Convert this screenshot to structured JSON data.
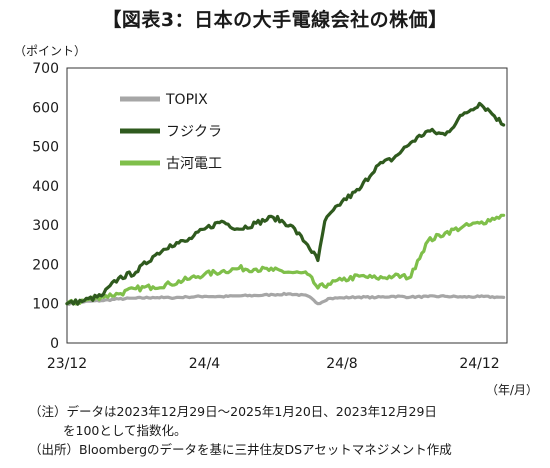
{
  "chart_data": {
    "type": "line",
    "title": "【図表3：日本の大手電線会社の株価】",
    "ylabel": "（ポイント）",
    "xlabel": "（年/月）",
    "ylim": [
      0,
      700
    ],
    "yticks": [
      0,
      100,
      200,
      300,
      400,
      500,
      600,
      700
    ],
    "x_range": [
      "2023-12",
      "2025-01"
    ],
    "xticks": [
      {
        "label": "23/12",
        "month": 0
      },
      {
        "label": "24/4",
        "month": 4
      },
      {
        "label": "24/8",
        "month": 8
      },
      {
        "label": "24/12",
        "month": 12
      }
    ],
    "grid": false,
    "legend_position": "top-left",
    "series": [
      {
        "name": "TOPIX",
        "color": "#a6a6a6",
        "x": [
          0,
          0.5,
          1,
          1.5,
          2,
          2.5,
          3,
          3.5,
          4,
          4.5,
          5,
          5.5,
          6,
          6.5,
          7,
          7.3,
          7.6,
          8,
          8.5,
          9,
          9.5,
          10,
          10.5,
          11,
          11.5,
          12,
          12.5,
          12.7
        ],
        "values": [
          100,
          105,
          108,
          112,
          114,
          116,
          115,
          117,
          119,
          118,
          120,
          121,
          123,
          125,
          120,
          100,
          113,
          115,
          117,
          116,
          119,
          117,
          118,
          119,
          117,
          118,
          117,
          116
        ]
      },
      {
        "name": "フジクラ",
        "color": "#2f5a1e",
        "x": [
          0,
          0.5,
          1,
          1.5,
          2,
          2.5,
          3,
          3.5,
          4,
          4.5,
          5,
          5.5,
          6,
          6.5,
          7,
          7.3,
          7.5,
          8,
          8.5,
          9,
          9.5,
          10,
          10.5,
          11,
          11.5,
          12,
          12.3,
          12.7
        ],
        "values": [
          100,
          108,
          120,
          165,
          180,
          220,
          250,
          260,
          290,
          310,
          290,
          305,
          320,
          300,
          250,
          210,
          310,
          360,
          390,
          450,
          470,
          510,
          540,
          530,
          580,
          610,
          590,
          555
        ]
      },
      {
        "name": "古河電工",
        "color": "#7fbf4a",
        "x": [
          0,
          0.5,
          1,
          1.5,
          2,
          2.5,
          3,
          3.5,
          4,
          4.5,
          5,
          5.5,
          6,
          6.5,
          7,
          7.3,
          7.6,
          8,
          8.5,
          9,
          9.5,
          10,
          10.2,
          10.5,
          11,
          11.5,
          12,
          12.5,
          12.7
        ],
        "values": [
          100,
          108,
          118,
          125,
          138,
          143,
          150,
          162,
          175,
          182,
          190,
          188,
          185,
          180,
          175,
          140,
          150,
          160,
          170,
          165,
          170,
          168,
          210,
          260,
          280,
          295,
          305,
          320,
          325
        ]
      }
    ]
  },
  "notes": {
    "line1": "（注）データは2023年12月29日～2025年1月20日、2023年12月29日",
    "line2": "を100として指数化。",
    "line3": "（出所）Bloombergのデータを基に三井住友DSアセットマネジメント作成"
  }
}
